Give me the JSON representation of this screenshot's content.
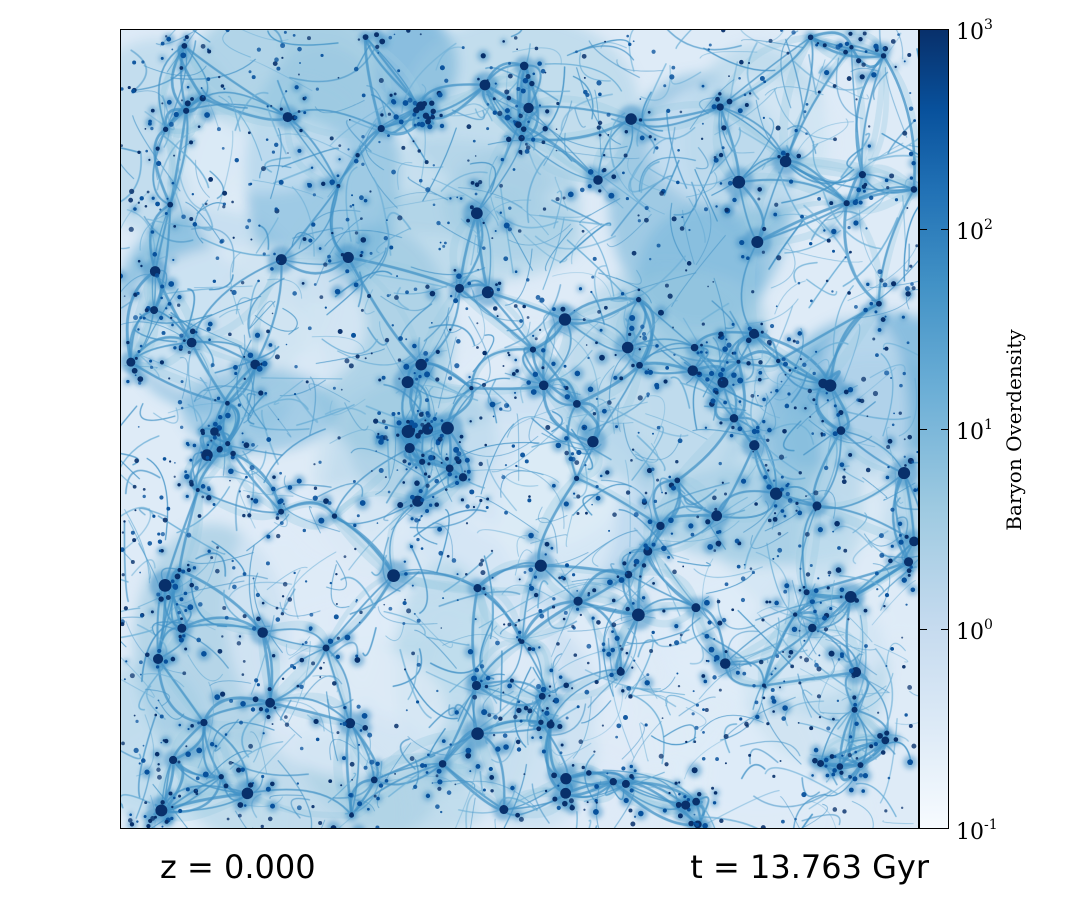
{
  "colorbar": {
    "label": "Baryon Overdensity",
    "scale": "log",
    "range": [
      0.1,
      1000
    ],
    "colormap": [
      "#f7fbff",
      "#deebf7",
      "#c6dbef",
      "#9ecae1",
      "#6baed6",
      "#4292c6",
      "#2171b5",
      "#08519c",
      "#08306b"
    ],
    "ticks": [
      {
        "base": "10",
        "exp": "3",
        "value": 1000
      },
      {
        "base": "10",
        "exp": "2",
        "value": 100
      },
      {
        "base": "10",
        "exp": "1",
        "value": 10
      },
      {
        "base": "10",
        "exp": "0",
        "value": 1
      },
      {
        "base": "10",
        "exp": "-1",
        "value": 0.1
      }
    ]
  },
  "annotations": {
    "redshift": "z = 0.000",
    "time": "t = 13.763 Gyr"
  }
}
